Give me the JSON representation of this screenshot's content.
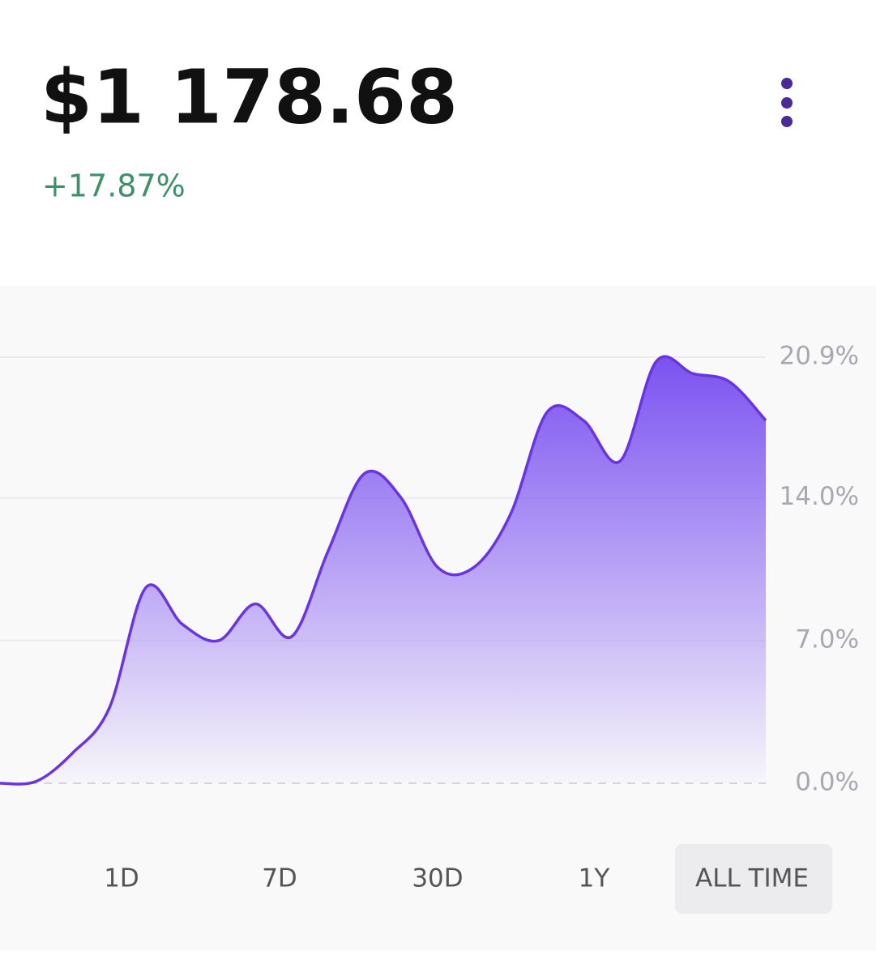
{
  "header": {
    "price": "$1 178.68",
    "change": "+17.87%"
  },
  "chart_data": {
    "type": "area",
    "categories": [
      null,
      null,
      null,
      null,
      null,
      null,
      null,
      null,
      null,
      null,
      null,
      null,
      null,
      null,
      null,
      null,
      null,
      null,
      null,
      null,
      null,
      null
    ],
    "values": [
      0,
      0.1,
      1.5,
      3.7,
      9.6,
      7.8,
      7.0,
      8.8,
      7.2,
      11.4,
      15.2,
      14.0,
      10.6,
      10.6,
      13.2,
      18.2,
      17.8,
      15.8,
      20.7,
      20.1,
      19.7,
      17.8
    ],
    "color": "#6a35e0",
    "ylim": [
      0,
      20.9
    ],
    "yticks": [
      {
        "value": 0,
        "label": "0.0%"
      },
      {
        "value": 7.0,
        "label": "7.0%"
      },
      {
        "value": 14.0,
        "label": "14.0%"
      },
      {
        "value": 20.9,
        "label": "20.9%"
      }
    ],
    "grid": true
  },
  "ranges": [
    "1D",
    "7D",
    "30D",
    "1Y",
    "ALL TIME"
  ]
}
